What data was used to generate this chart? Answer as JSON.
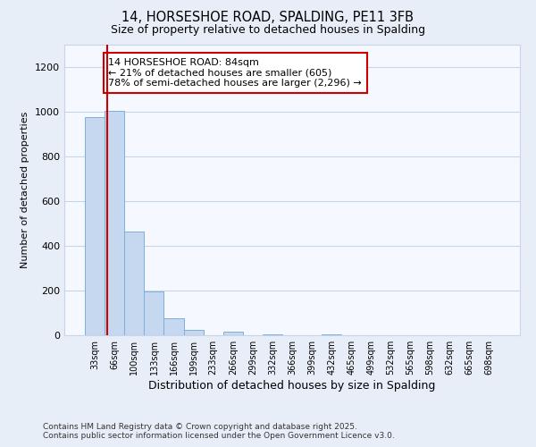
{
  "title_line1": "14, HORSESHOE ROAD, SPALDING, PE11 3FB",
  "title_line2": "Size of property relative to detached houses in Spalding",
  "xlabel": "Distribution of detached houses by size in Spalding",
  "ylabel": "Number of detached properties",
  "categories": [
    "33sqm",
    "66sqm",
    "100sqm",
    "133sqm",
    "166sqm",
    "199sqm",
    "233sqm",
    "266sqm",
    "299sqm",
    "332sqm",
    "366sqm",
    "399sqm",
    "432sqm",
    "465sqm",
    "499sqm",
    "532sqm",
    "565sqm",
    "598sqm",
    "632sqm",
    "665sqm",
    "698sqm"
  ],
  "values": [
    975,
    1005,
    465,
    195,
    75,
    25,
    0,
    15,
    0,
    5,
    0,
    0,
    5,
    0,
    0,
    0,
    0,
    0,
    0,
    0,
    0
  ],
  "bar_color": "#c5d8f0",
  "bar_edge_color": "#7dafd9",
  "red_line_x": 0.62,
  "annotation_title": "14 HORSESHOE ROAD: 84sqm",
  "annotation_line2": "← 21% of detached houses are smaller (605)",
  "annotation_line3": "78% of semi-detached houses are larger (2,296) →",
  "annotation_box_color": "#ffffff",
  "annotation_box_edge": "#cc0000",
  "ylim": [
    0,
    1300
  ],
  "yticks": [
    0,
    200,
    400,
    600,
    800,
    1000,
    1200
  ],
  "footer_line1": "Contains HM Land Registry data © Crown copyright and database right 2025.",
  "footer_line2": "Contains public sector information licensed under the Open Government Licence v3.0.",
  "bg_color": "#e8eef8",
  "plot_bg_color": "#f5f8ff"
}
